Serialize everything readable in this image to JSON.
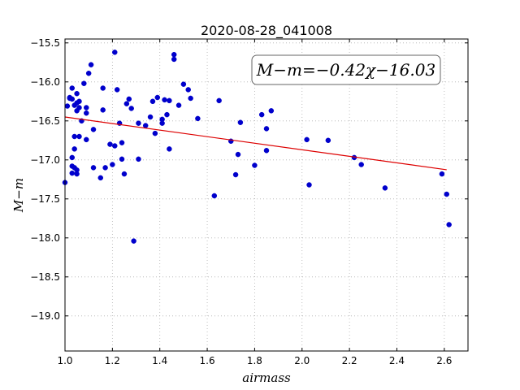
{
  "chart_data": {
    "type": "scatter",
    "title": "2020-08-28_041008",
    "xlabel": "airmass",
    "ylabel": "M−m",
    "xlim": [
      1.0,
      2.7
    ],
    "ylim": [
      -19.45,
      -15.45
    ],
    "y_inverted": true,
    "grid": true,
    "xticks": [
      1.0,
      1.2,
      1.4,
      1.6,
      1.8,
      2.0,
      2.2,
      2.4,
      2.6
    ],
    "xtick_labels": [
      "1.0",
      "1.2",
      "1.4",
      "1.6",
      "1.8",
      "2.0",
      "2.2",
      "2.4",
      "2.6"
    ],
    "yticks": [
      -15.5,
      -16.0,
      -16.5,
      -17.0,
      -17.5,
      -18.0,
      -18.5,
      -19.0
    ],
    "ytick_labels": [
      "−15.5",
      "−16.0",
      "−16.5",
      "−17.0",
      "−17.5",
      "−18.0",
      "−18.5",
      "−19.0"
    ],
    "annotation": "M−m=−0.42χ−16.03",
    "point_color": "#0000cc",
    "fit_color": "#dd0000",
    "fit": {
      "slope": -0.42,
      "intercept": -16.03,
      "x_range": [
        1.0,
        2.61
      ]
    },
    "points": [
      [
        1.0,
        -17.29
      ],
      [
        1.01,
        -16.31
      ],
      [
        1.02,
        -16.2
      ],
      [
        1.02,
        -16.21
      ],
      [
        1.03,
        -16.08
      ],
      [
        1.03,
        -16.22
      ],
      [
        1.03,
        -16.97
      ],
      [
        1.03,
        -17.17
      ],
      [
        1.03,
        -17.08
      ],
      [
        1.04,
        -16.86
      ],
      [
        1.04,
        -17.1
      ],
      [
        1.04,
        -16.7
      ],
      [
        1.04,
        -16.3
      ],
      [
        1.05,
        -16.37
      ],
      [
        1.05,
        -16.27
      ],
      [
        1.05,
        -16.15
      ],
      [
        1.05,
        -17.13
      ],
      [
        1.05,
        -17.18
      ],
      [
        1.06,
        -16.33
      ],
      [
        1.06,
        -16.25
      ],
      [
        1.06,
        -16.7
      ],
      [
        1.07,
        -16.5
      ],
      [
        1.08,
        -16.02
      ],
      [
        1.09,
        -16.74
      ],
      [
        1.09,
        -16.33
      ],
      [
        1.09,
        -16.4
      ],
      [
        1.1,
        -15.89
      ],
      [
        1.11,
        -15.78
      ],
      [
        1.12,
        -16.61
      ],
      [
        1.12,
        -17.1
      ],
      [
        1.15,
        -17.23
      ],
      [
        1.16,
        -16.36
      ],
      [
        1.16,
        -16.08
      ],
      [
        1.17,
        -17.1
      ],
      [
        1.19,
        -16.8
      ],
      [
        1.2,
        -17.06
      ],
      [
        1.21,
        -15.62
      ],
      [
        1.21,
        -16.82
      ],
      [
        1.22,
        -16.1
      ],
      [
        1.23,
        -16.53
      ],
      [
        1.24,
        -16.78
      ],
      [
        1.24,
        -16.99
      ],
      [
        1.25,
        -17.18
      ],
      [
        1.26,
        -16.28
      ],
      [
        1.27,
        -16.22
      ],
      [
        1.28,
        -16.34
      ],
      [
        1.29,
        -18.04
      ],
      [
        1.31,
        -16.53
      ],
      [
        1.31,
        -16.99
      ],
      [
        1.34,
        -16.56
      ],
      [
        1.36,
        -16.45
      ],
      [
        1.37,
        -16.25
      ],
      [
        1.38,
        -16.66
      ],
      [
        1.39,
        -16.2
      ],
      [
        1.41,
        -16.53
      ],
      [
        1.41,
        -16.48
      ],
      [
        1.42,
        -16.23
      ],
      [
        1.43,
        -16.42
      ],
      [
        1.44,
        -16.24
      ],
      [
        1.44,
        -16.86
      ],
      [
        1.46,
        -15.65
      ],
      [
        1.46,
        -15.71
      ],
      [
        1.48,
        -16.3
      ],
      [
        1.5,
        -16.03
      ],
      [
        1.52,
        -16.1
      ],
      [
        1.53,
        -16.21
      ],
      [
        1.56,
        -16.47
      ],
      [
        1.63,
        -17.46
      ],
      [
        1.65,
        -16.24
      ],
      [
        1.7,
        -16.76
      ],
      [
        1.72,
        -17.19
      ],
      [
        1.73,
        -16.93
      ],
      [
        1.74,
        -16.52
      ],
      [
        1.8,
        -17.07
      ],
      [
        1.83,
        -16.42
      ],
      [
        1.85,
        -16.6
      ],
      [
        1.85,
        -16.88
      ],
      [
        1.87,
        -16.37
      ],
      [
        2.02,
        -16.74
      ],
      [
        2.03,
        -17.32
      ],
      [
        2.11,
        -16.75
      ],
      [
        2.22,
        -16.97
      ],
      [
        2.25,
        -17.06
      ],
      [
        2.35,
        -17.36
      ],
      [
        2.59,
        -17.18
      ],
      [
        2.61,
        -17.44
      ],
      [
        2.62,
        -17.83
      ]
    ]
  }
}
